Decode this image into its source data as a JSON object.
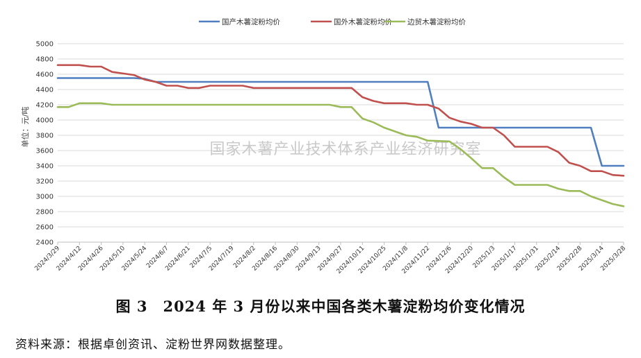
{
  "chart_data": {
    "type": "line",
    "title": "",
    "ylabel": "单位：元/吨",
    "ylim": [
      2400,
      5000
    ],
    "yticks": [
      2400,
      2600,
      2800,
      3000,
      3200,
      3400,
      3600,
      3800,
      4000,
      4200,
      4400,
      4600,
      4800,
      5000
    ],
    "grid": "horizontal",
    "legend_position": "top",
    "watermark": "国家木薯产业技术体系产业经济研究室",
    "x_tick_labels": [
      "2024/3/29",
      "2024/4/12",
      "2024/4/26",
      "2024/5/10",
      "2024/5/24",
      "2024/6/7",
      "2024/6/21",
      "2024/7/5",
      "2024/7/19",
      "2024/8/2",
      "2024/8/16",
      "2024/8/30",
      "2024/9/13",
      "2024/9/27",
      "2024/10/11",
      "2024/10/25",
      "2024/11/8",
      "2024/11/22",
      "2024/12/6",
      "2024/12/20",
      "2025/1/3",
      "2025/1/17",
      "2025/1/31",
      "2025/2/14",
      "2025/2/28",
      "2025/3/14",
      "2025/3/28"
    ],
    "series": [
      {
        "name": "国产木薯淀粉均价",
        "color": "#4f7fbf",
        "points": [
          [
            "2024/3/29",
            4550
          ],
          [
            "2024/5/17",
            4550
          ],
          [
            "2024/5/24",
            4540
          ],
          [
            "2024/5/31",
            4500
          ],
          [
            "2024/11/22",
            4500
          ],
          [
            "2024/11/29",
            3900
          ],
          [
            "2025/3/7",
            3900
          ],
          [
            "2025/3/14",
            3400
          ],
          [
            "2025/3/28",
            3400
          ]
        ]
      },
      {
        "name": "国外木薯淀粉均价",
        "color": "#c0504d",
        "points": [
          [
            "2024/3/29",
            4720
          ],
          [
            "2024/4/12",
            4720
          ],
          [
            "2024/4/19",
            4700
          ],
          [
            "2024/4/26",
            4700
          ],
          [
            "2024/5/3",
            4630
          ],
          [
            "2024/5/10",
            4610
          ],
          [
            "2024/5/17",
            4590
          ],
          [
            "2024/5/24",
            4530
          ],
          [
            "2024/5/31",
            4500
          ],
          [
            "2024/6/7",
            4450
          ],
          [
            "2024/6/14",
            4450
          ],
          [
            "2024/6/21",
            4420
          ],
          [
            "2024/6/28",
            4420
          ],
          [
            "2024/7/5",
            4450
          ],
          [
            "2024/7/26",
            4450
          ],
          [
            "2024/8/2",
            4420
          ],
          [
            "2024/10/4",
            4420
          ],
          [
            "2024/10/11",
            4300
          ],
          [
            "2024/10/18",
            4250
          ],
          [
            "2024/10/25",
            4220
          ],
          [
            "2024/11/8",
            4220
          ],
          [
            "2024/11/15",
            4200
          ],
          [
            "2024/11/22",
            4200
          ],
          [
            "2024/11/29",
            4150
          ],
          [
            "2024/12/6",
            4030
          ],
          [
            "2024/12/13",
            3980
          ],
          [
            "2024/12/20",
            3950
          ],
          [
            "2024/12/27",
            3900
          ],
          [
            "2025/1/3",
            3900
          ],
          [
            "2025/1/10",
            3800
          ],
          [
            "2025/1/17",
            3650
          ],
          [
            "2025/2/7",
            3650
          ],
          [
            "2025/2/14",
            3580
          ],
          [
            "2025/2/21",
            3440
          ],
          [
            "2025/2/28",
            3400
          ],
          [
            "2025/3/7",
            3330
          ],
          [
            "2025/3/14",
            3330
          ],
          [
            "2025/3/21",
            3280
          ],
          [
            "2025/3/28",
            3270
          ]
        ]
      },
      {
        "name": "边贸木薯淀粉均价",
        "color": "#9bbb59",
        "points": [
          [
            "2024/3/29",
            4170
          ],
          [
            "2024/4/5",
            4170
          ],
          [
            "2024/4/12",
            4220
          ],
          [
            "2024/4/26",
            4220
          ],
          [
            "2024/5/3",
            4200
          ],
          [
            "2024/9/20",
            4200
          ],
          [
            "2024/9/27",
            4170
          ],
          [
            "2024/10/4",
            4170
          ],
          [
            "2024/10/11",
            4020
          ],
          [
            "2024/10/18",
            3970
          ],
          [
            "2024/10/25",
            3900
          ],
          [
            "2024/11/1",
            3850
          ],
          [
            "2024/11/8",
            3800
          ],
          [
            "2024/11/15",
            3780
          ],
          [
            "2024/11/22",
            3730
          ],
          [
            "2024/12/6",
            3720
          ],
          [
            "2024/12/13",
            3620
          ],
          [
            "2024/12/20",
            3500
          ],
          [
            "2024/12/27",
            3370
          ],
          [
            "2025/1/3",
            3370
          ],
          [
            "2025/1/10",
            3250
          ],
          [
            "2025/1/17",
            3150
          ],
          [
            "2025/2/7",
            3150
          ],
          [
            "2025/2/14",
            3100
          ],
          [
            "2025/2/21",
            3070
          ],
          [
            "2025/2/28",
            3070
          ],
          [
            "2025/3/7",
            3000
          ],
          [
            "2025/3/14",
            2950
          ],
          [
            "2025/3/21",
            2900
          ],
          [
            "2025/3/28",
            2870
          ]
        ]
      }
    ]
  },
  "caption": "图 3　2024 年 3 月份以来中国各类木薯淀粉均价变化情况",
  "source": "资料来源：根据卓创资讯、淀粉世界网数据整理。"
}
